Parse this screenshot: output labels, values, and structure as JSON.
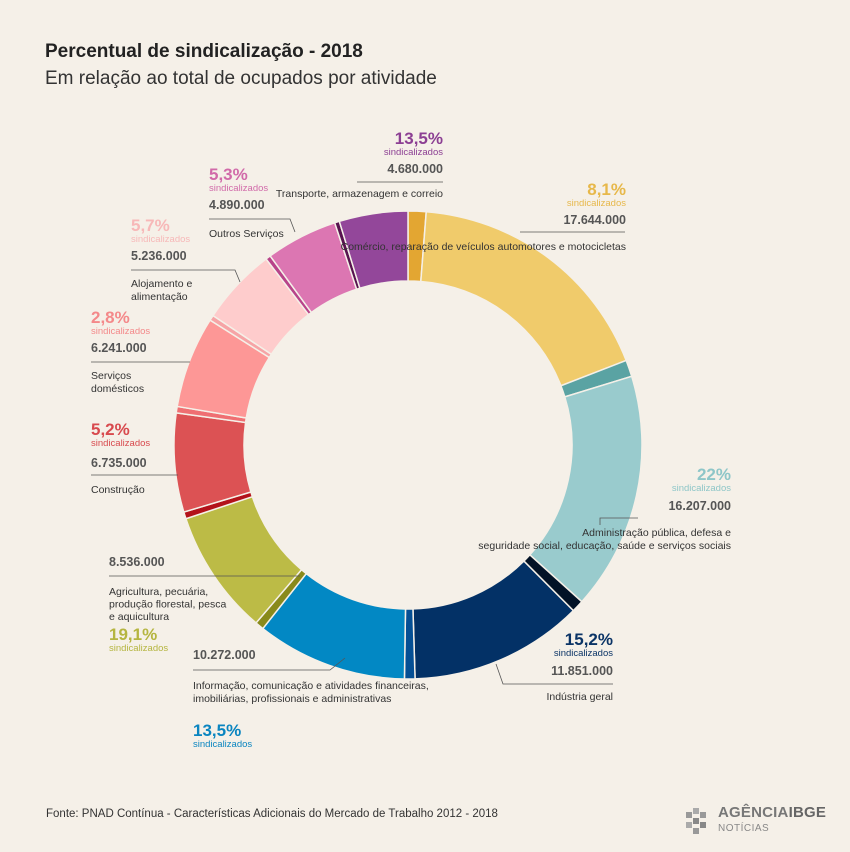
{
  "header": {
    "title": "Percentual de sindicalização - 2018",
    "subtitle": "Em relação ao total de ocupados por atividade"
  },
  "footer": {
    "source": "Fonte: PNAD Contínua - Características Adicionais do Mercado de Trabalho 2012 - 2018"
  },
  "logo": {
    "name": "AGÊNCIA IBGE",
    "sub": "NOTÍCIAS",
    "word_a": "AGÊNCIA",
    "word_b": "IBGE"
  },
  "chart_data": {
    "type": "pie",
    "variant": "donut",
    "value_unit": "ocupados",
    "pct_suffix": "sindicalizados",
    "categories": [
      {
        "name": "Comércio, reparação de veículos automotores e motocicletas",
        "value": 17644000,
        "value_label": "17.644.000",
        "pct": "8,1%",
        "pct_value": 8.1,
        "color": "#f0cb6b",
        "accent": "#e3a632",
        "label_color": "#e7b84a"
      },
      {
        "name": "Administração pública, defesa e seguridade social, educação, saúde e serviços sociais",
        "value": 16207000,
        "value_label": "16.207.000",
        "pct": "22%",
        "pct_value": 22,
        "color": "#99cbcd",
        "accent": "#5aa3a3",
        "label_color": "#8ec6c8"
      },
      {
        "name": "Indústria geral",
        "value": 11851000,
        "value_label": "11.851.000",
        "pct": "15,2%",
        "pct_value": 15.2,
        "color": "#033166",
        "accent": "#021226",
        "label_color": "#0b3466"
      },
      {
        "name": "Informação, comunicação e atividades financeiras, imobiliárias, profissionais e administrativas",
        "value": 10272000,
        "value_label": "10.272.000",
        "pct": "13,5%",
        "pct_value": 13.5,
        "color": "#0288c4",
        "accent": "#054f94",
        "label_color": "#0a85c0"
      },
      {
        "name": "Agricultura, pecuária, produção florestal, pesca e aquicultura",
        "value": 8536000,
        "value_label": "8.536.000",
        "pct": "19,1%",
        "pct_value": 19.1,
        "color": "#bcbb46",
        "accent": "#898a1b",
        "label_color": "#b5b540"
      },
      {
        "name": "Construção",
        "value": 6735000,
        "value_label": "6.735.000",
        "pct": "5,2%",
        "pct_value": 5.2,
        "color": "#dc5254",
        "accent": "#b3121a",
        "label_color": "#d84a4e"
      },
      {
        "name": "Serviços domésticos",
        "value": 6241000,
        "value_label": "6.241.000",
        "pct": "2,8%",
        "pct_value": 2.8,
        "color": "#fd9796",
        "accent": "#ef6f72",
        "label_color": "#f4898a"
      },
      {
        "name": "Alojamento e alimentação",
        "value": 5236000,
        "value_label": "5.236.000",
        "pct": "5,7%",
        "pct_value": 5.7,
        "color": "#fecccc",
        "accent": "#f6a4a6",
        "label_color": "#f7b8b8"
      },
      {
        "name": "Outros Serviços",
        "value": 4890000,
        "value_label": "4.890.000",
        "pct": "5,3%",
        "pct_value": 5.3,
        "color": "#dc76b2",
        "accent": "#b8448a",
        "label_color": "#d16aa9"
      },
      {
        "name": "Transporte, armazenagem e correio",
        "value": 4680000,
        "value_label": "4.680.000",
        "pct": "13,5%",
        "pct_value": 13.5,
        "color": "#93479a",
        "accent": "#58134f",
        "label_color": "#8c3f93"
      }
    ]
  }
}
